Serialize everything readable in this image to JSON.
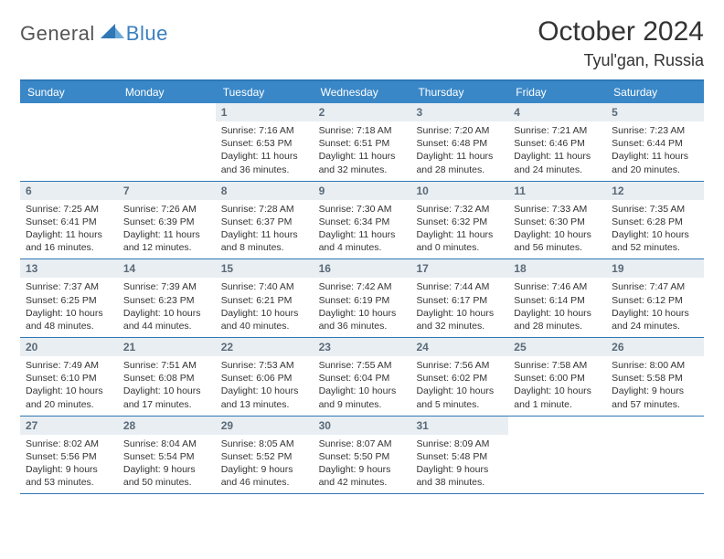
{
  "logo": {
    "general": "General",
    "blue": "Blue"
  },
  "title": "October 2024",
  "subtitle": "Tyul'gan, Russia",
  "colors": {
    "header_bg": "#3a87c7",
    "header_border": "#2f77b5",
    "daynum_bg": "#e9eef2",
    "daynum_color": "#5a6a78",
    "text": "#333333",
    "logo_blue": "#3a7fbf"
  },
  "dow": [
    "Sunday",
    "Monday",
    "Tuesday",
    "Wednesday",
    "Thursday",
    "Friday",
    "Saturday"
  ],
  "weeks": [
    [
      {
        "n": "",
        "sr": "",
        "ss": "",
        "dl1": "",
        "dl2": "",
        "empty": true
      },
      {
        "n": "",
        "sr": "",
        "ss": "",
        "dl1": "",
        "dl2": "",
        "empty": true
      },
      {
        "n": "1",
        "sr": "Sunrise: 7:16 AM",
        "ss": "Sunset: 6:53 PM",
        "dl1": "Daylight: 11 hours",
        "dl2": "and 36 minutes."
      },
      {
        "n": "2",
        "sr": "Sunrise: 7:18 AM",
        "ss": "Sunset: 6:51 PM",
        "dl1": "Daylight: 11 hours",
        "dl2": "and 32 minutes."
      },
      {
        "n": "3",
        "sr": "Sunrise: 7:20 AM",
        "ss": "Sunset: 6:48 PM",
        "dl1": "Daylight: 11 hours",
        "dl2": "and 28 minutes."
      },
      {
        "n": "4",
        "sr": "Sunrise: 7:21 AM",
        "ss": "Sunset: 6:46 PM",
        "dl1": "Daylight: 11 hours",
        "dl2": "and 24 minutes."
      },
      {
        "n": "5",
        "sr": "Sunrise: 7:23 AM",
        "ss": "Sunset: 6:44 PM",
        "dl1": "Daylight: 11 hours",
        "dl2": "and 20 minutes."
      }
    ],
    [
      {
        "n": "6",
        "sr": "Sunrise: 7:25 AM",
        "ss": "Sunset: 6:41 PM",
        "dl1": "Daylight: 11 hours",
        "dl2": "and 16 minutes."
      },
      {
        "n": "7",
        "sr": "Sunrise: 7:26 AM",
        "ss": "Sunset: 6:39 PM",
        "dl1": "Daylight: 11 hours",
        "dl2": "and 12 minutes."
      },
      {
        "n": "8",
        "sr": "Sunrise: 7:28 AM",
        "ss": "Sunset: 6:37 PM",
        "dl1": "Daylight: 11 hours",
        "dl2": "and 8 minutes."
      },
      {
        "n": "9",
        "sr": "Sunrise: 7:30 AM",
        "ss": "Sunset: 6:34 PM",
        "dl1": "Daylight: 11 hours",
        "dl2": "and 4 minutes."
      },
      {
        "n": "10",
        "sr": "Sunrise: 7:32 AM",
        "ss": "Sunset: 6:32 PM",
        "dl1": "Daylight: 11 hours",
        "dl2": "and 0 minutes."
      },
      {
        "n": "11",
        "sr": "Sunrise: 7:33 AM",
        "ss": "Sunset: 6:30 PM",
        "dl1": "Daylight: 10 hours",
        "dl2": "and 56 minutes."
      },
      {
        "n": "12",
        "sr": "Sunrise: 7:35 AM",
        "ss": "Sunset: 6:28 PM",
        "dl1": "Daylight: 10 hours",
        "dl2": "and 52 minutes."
      }
    ],
    [
      {
        "n": "13",
        "sr": "Sunrise: 7:37 AM",
        "ss": "Sunset: 6:25 PM",
        "dl1": "Daylight: 10 hours",
        "dl2": "and 48 minutes."
      },
      {
        "n": "14",
        "sr": "Sunrise: 7:39 AM",
        "ss": "Sunset: 6:23 PM",
        "dl1": "Daylight: 10 hours",
        "dl2": "and 44 minutes."
      },
      {
        "n": "15",
        "sr": "Sunrise: 7:40 AM",
        "ss": "Sunset: 6:21 PM",
        "dl1": "Daylight: 10 hours",
        "dl2": "and 40 minutes."
      },
      {
        "n": "16",
        "sr": "Sunrise: 7:42 AM",
        "ss": "Sunset: 6:19 PM",
        "dl1": "Daylight: 10 hours",
        "dl2": "and 36 minutes."
      },
      {
        "n": "17",
        "sr": "Sunrise: 7:44 AM",
        "ss": "Sunset: 6:17 PM",
        "dl1": "Daylight: 10 hours",
        "dl2": "and 32 minutes."
      },
      {
        "n": "18",
        "sr": "Sunrise: 7:46 AM",
        "ss": "Sunset: 6:14 PM",
        "dl1": "Daylight: 10 hours",
        "dl2": "and 28 minutes."
      },
      {
        "n": "19",
        "sr": "Sunrise: 7:47 AM",
        "ss": "Sunset: 6:12 PM",
        "dl1": "Daylight: 10 hours",
        "dl2": "and 24 minutes."
      }
    ],
    [
      {
        "n": "20",
        "sr": "Sunrise: 7:49 AM",
        "ss": "Sunset: 6:10 PM",
        "dl1": "Daylight: 10 hours",
        "dl2": "and 20 minutes."
      },
      {
        "n": "21",
        "sr": "Sunrise: 7:51 AM",
        "ss": "Sunset: 6:08 PM",
        "dl1": "Daylight: 10 hours",
        "dl2": "and 17 minutes."
      },
      {
        "n": "22",
        "sr": "Sunrise: 7:53 AM",
        "ss": "Sunset: 6:06 PM",
        "dl1": "Daylight: 10 hours",
        "dl2": "and 13 minutes."
      },
      {
        "n": "23",
        "sr": "Sunrise: 7:55 AM",
        "ss": "Sunset: 6:04 PM",
        "dl1": "Daylight: 10 hours",
        "dl2": "and 9 minutes."
      },
      {
        "n": "24",
        "sr": "Sunrise: 7:56 AM",
        "ss": "Sunset: 6:02 PM",
        "dl1": "Daylight: 10 hours",
        "dl2": "and 5 minutes."
      },
      {
        "n": "25",
        "sr": "Sunrise: 7:58 AM",
        "ss": "Sunset: 6:00 PM",
        "dl1": "Daylight: 10 hours",
        "dl2": "and 1 minute."
      },
      {
        "n": "26",
        "sr": "Sunrise: 8:00 AM",
        "ss": "Sunset: 5:58 PM",
        "dl1": "Daylight: 9 hours",
        "dl2": "and 57 minutes."
      }
    ],
    [
      {
        "n": "27",
        "sr": "Sunrise: 8:02 AM",
        "ss": "Sunset: 5:56 PM",
        "dl1": "Daylight: 9 hours",
        "dl2": "and 53 minutes."
      },
      {
        "n": "28",
        "sr": "Sunrise: 8:04 AM",
        "ss": "Sunset: 5:54 PM",
        "dl1": "Daylight: 9 hours",
        "dl2": "and 50 minutes."
      },
      {
        "n": "29",
        "sr": "Sunrise: 8:05 AM",
        "ss": "Sunset: 5:52 PM",
        "dl1": "Daylight: 9 hours",
        "dl2": "and 46 minutes."
      },
      {
        "n": "30",
        "sr": "Sunrise: 8:07 AM",
        "ss": "Sunset: 5:50 PM",
        "dl1": "Daylight: 9 hours",
        "dl2": "and 42 minutes."
      },
      {
        "n": "31",
        "sr": "Sunrise: 8:09 AM",
        "ss": "Sunset: 5:48 PM",
        "dl1": "Daylight: 9 hours",
        "dl2": "and 38 minutes."
      },
      {
        "n": "",
        "sr": "",
        "ss": "",
        "dl1": "",
        "dl2": "",
        "empty": true
      },
      {
        "n": "",
        "sr": "",
        "ss": "",
        "dl1": "",
        "dl2": "",
        "empty": true
      }
    ]
  ]
}
